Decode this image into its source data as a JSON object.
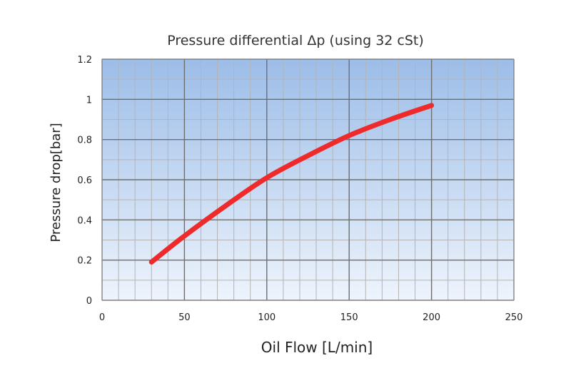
{
  "chart_data": {
    "type": "line",
    "title": "Pressure differential Δp (using 32 cSt)",
    "xlabel": "Oil Flow [L/min]",
    "ylabel": "Pressure drop[bar]",
    "xlim": [
      0,
      250
    ],
    "ylim": [
      0,
      1.2
    ],
    "x_ticks": [
      0,
      50,
      100,
      150,
      200,
      250
    ],
    "y_ticks": [
      0,
      0.2,
      0.4,
      0.6,
      0.8,
      1,
      1.2
    ],
    "x_tick_labels": [
      "0",
      "50",
      "100",
      "150",
      "200",
      "250"
    ],
    "y_tick_labels": [
      "0",
      "0.2",
      "0.4",
      "0.6",
      "0.8",
      "1",
      "1.2"
    ],
    "grid": true,
    "series": [
      {
        "color": "#ee2a2a",
        "x": [
          30,
          50,
          75,
          100,
          125,
          150,
          175,
          200
        ],
        "y": [
          0.19,
          0.32,
          0.47,
          0.61,
          0.72,
          0.82,
          0.9,
          0.97
        ]
      }
    ],
    "colors": {
      "plot_top": "#9cbde8",
      "plot_bottom": "#eef4fc",
      "line": "#ee2a2a"
    }
  }
}
